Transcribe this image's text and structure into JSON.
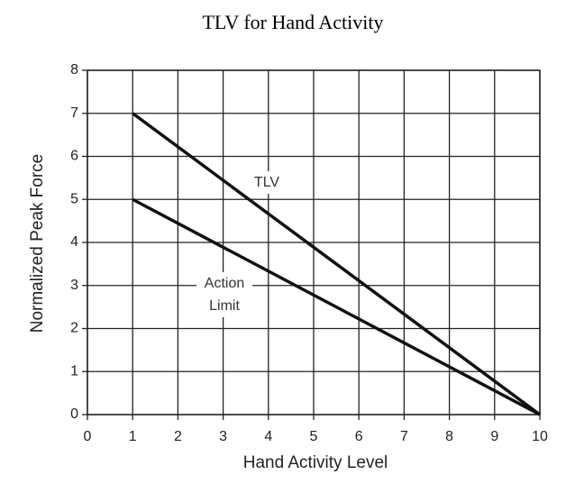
{
  "chart_data": {
    "type": "line",
    "title": "TLV for Hand Activity",
    "x_label": "Hand Activity Level",
    "y_label": "Normalized Peak Force",
    "x": [
      1,
      10
    ],
    "series": [
      {
        "name": "TLV",
        "color": "#111111",
        "values": [
          7,
          0
        ]
      },
      {
        "name": "Action Limit",
        "color": "#111111",
        "values": [
          5,
          0
        ]
      }
    ],
    "xlim": [
      0,
      10
    ],
    "xticks": [
      0,
      1,
      2,
      3,
      4,
      5,
      6,
      7,
      8,
      9,
      10
    ],
    "ylim": [
      0,
      8
    ],
    "yticks": [
      0,
      1,
      2,
      3,
      4,
      5,
      6,
      7,
      8
    ],
    "grid": true
  }
}
